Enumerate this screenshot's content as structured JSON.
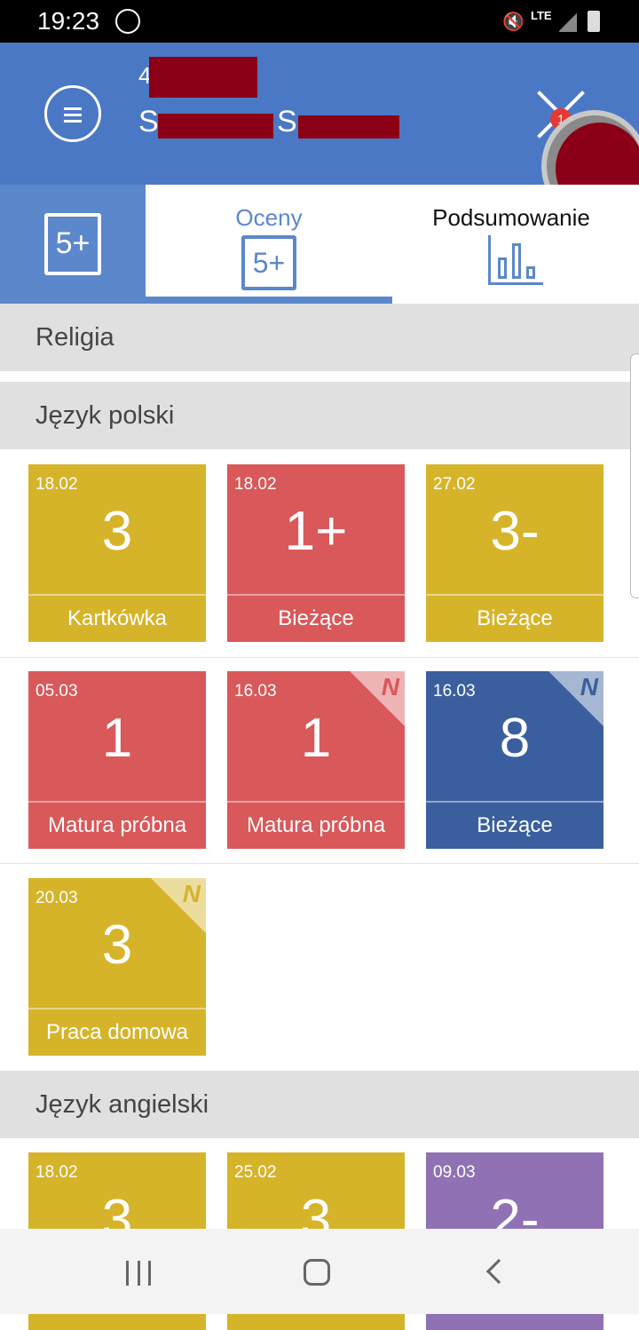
{
  "status": {
    "time": "19:23",
    "icons": [
      "messenger-icon",
      "mute-icon",
      "lte-icon",
      "signal-icon",
      "battery-icon"
    ]
  },
  "header": {
    "line1_visible": "4",
    "line2_visible_a": "S",
    "line2_visible_b": "S",
    "badge": "1"
  },
  "tabs": [
    {
      "label": "Oceny",
      "active": true
    },
    {
      "label": "Podsumowanie",
      "active": false
    }
  ],
  "side_icon_text": "5+",
  "colors": {
    "header": "#4b78c5",
    "yellow": "#d6b42a",
    "red": "#d9585a",
    "blue": "#3b5f9e",
    "purple": "#9072b4"
  },
  "sections": [
    {
      "name": "Religia",
      "grades": []
    },
    {
      "name": "Język polski",
      "grades": [
        {
          "date": "18.02",
          "grade": "3",
          "category": "Kartkówka",
          "color": "#d6b42a",
          "new": false
        },
        {
          "date": "18.02",
          "grade": "1+",
          "category": "Bieżące",
          "color": "#d9585a",
          "new": false
        },
        {
          "date": "27.02",
          "grade": "3-",
          "category": "Bieżące",
          "color": "#d6b42a",
          "new": false
        },
        {
          "date": "05.03",
          "grade": "1",
          "category": "Matura próbna",
          "color": "#d9585a",
          "new": false
        },
        {
          "date": "16.03",
          "grade": "1",
          "category": "Matura próbna",
          "color": "#d9585a",
          "new": true
        },
        {
          "date": "16.03",
          "grade": "8",
          "category": "Bieżące",
          "color": "#3b5f9e",
          "new": true
        },
        {
          "date": "20.03",
          "grade": "3",
          "category": "Praca domowa",
          "color": "#d6b42a",
          "new": true
        }
      ]
    },
    {
      "name": "Język angielski",
      "grades": [
        {
          "date": "18.02",
          "grade": "3",
          "color": "#d6b42a"
        },
        {
          "date": "25.02",
          "grade": "3",
          "color": "#d6b42a"
        },
        {
          "date": "09.03",
          "grade": "2-",
          "color": "#9072b4"
        }
      ]
    }
  ],
  "new_marker": "N"
}
